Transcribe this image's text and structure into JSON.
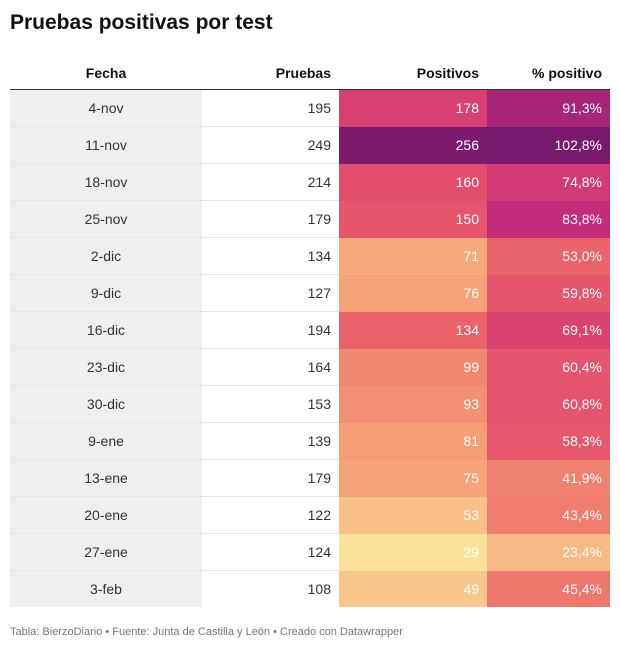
{
  "title": "Pruebas positivas por test",
  "footer": "Tabla: BierzoDiario • Fuente: Junta de Castilla y León • Creado con Datawrapper",
  "chart_data": {
    "type": "table",
    "columns": [
      "Fecha",
      "Pruebas",
      "Positivos",
      "% positivo"
    ],
    "rows": [
      {
        "fecha": "4-nov",
        "pruebas": "195",
        "positivos": "178",
        "pct": "91,3%",
        "pos_value": 178,
        "pct_value": 91.3
      },
      {
        "fecha": "11-nov",
        "pruebas": "249",
        "positivos": "256",
        "pct": "102,8%",
        "pos_value": 256,
        "pct_value": 102.8
      },
      {
        "fecha": "18-nov",
        "pruebas": "214",
        "positivos": "160",
        "pct": "74,8%",
        "pos_value": 160,
        "pct_value": 74.8
      },
      {
        "fecha": "25-nov",
        "pruebas": "179",
        "positivos": "150",
        "pct": "83,8%",
        "pos_value": 150,
        "pct_value": 83.8
      },
      {
        "fecha": "2-dic",
        "pruebas": "134",
        "positivos": "71",
        "pct": "53,0%",
        "pos_value": 71,
        "pct_value": 53.0
      },
      {
        "fecha": "9-dic",
        "pruebas": "127",
        "positivos": "76",
        "pct": "59,8%",
        "pos_value": 76,
        "pct_value": 59.8
      },
      {
        "fecha": "16-dic",
        "pruebas": "194",
        "positivos": "134",
        "pct": "69,1%",
        "pos_value": 134,
        "pct_value": 69.1
      },
      {
        "fecha": "23-dic",
        "pruebas": "164",
        "positivos": "99",
        "pct": "60,4%",
        "pos_value": 99,
        "pct_value": 60.4
      },
      {
        "fecha": "30-dic",
        "pruebas": "153",
        "positivos": "93",
        "pct": "60,8%",
        "pos_value": 93,
        "pct_value": 60.8
      },
      {
        "fecha": "9-ene",
        "pruebas": "139",
        "positivos": "81",
        "pct": "58,3%",
        "pos_value": 81,
        "pct_value": 58.3
      },
      {
        "fecha": "13-ene",
        "pruebas": "179",
        "positivos": "75",
        "pct": "41,9%",
        "pos_value": 75,
        "pct_value": 41.9
      },
      {
        "fecha": "20-ene",
        "pruebas": "122",
        "positivos": "53",
        "pct": "43,4%",
        "pos_value": 53,
        "pct_value": 43.4
      },
      {
        "fecha": "27-ene",
        "pruebas": "124",
        "positivos": "29",
        "pct": "23,4%",
        "pos_value": 29,
        "pct_value": 23.4
      },
      {
        "fecha": "3-feb",
        "pruebas": "108",
        "positivos": "49",
        "pct": "45,4%",
        "pos_value": 49,
        "pct_value": 45.4
      }
    ],
    "color_scale": [
      "#fbe29a",
      "#f7a478",
      "#ee6f6a",
      "#e0486e",
      "#c22a7c",
      "#7a1a6e"
    ]
  }
}
